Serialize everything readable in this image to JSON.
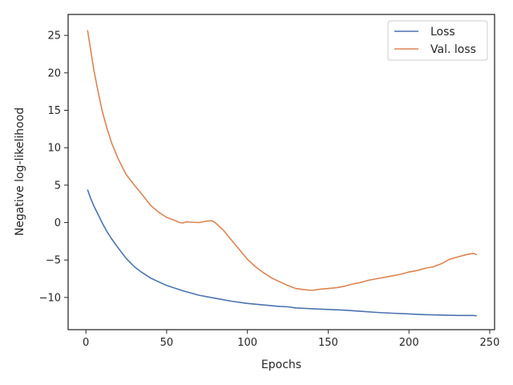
{
  "chart_data": {
    "type": "line",
    "xlabel": "Epochs",
    "ylabel": "Negative log-likelihood",
    "xlim": [
      -11,
      253
    ],
    "ylim": [
      -14.3,
      27.8
    ],
    "xticks": [
      0,
      50,
      100,
      150,
      200,
      250
    ],
    "yticks": [
      -10,
      -5,
      0,
      5,
      10,
      15,
      20,
      25
    ],
    "grid": false,
    "legend_position": "top-right",
    "series": [
      {
        "name": "Loss",
        "color": "#4C72B0",
        "points": [
          [
            1,
            4.4
          ],
          [
            3,
            3.2
          ],
          [
            5,
            2.2
          ],
          [
            8,
            0.9
          ],
          [
            10,
            0.0
          ],
          [
            13,
            -1.2
          ],
          [
            16,
            -2.2
          ],
          [
            20,
            -3.4
          ],
          [
            25,
            -4.8
          ],
          [
            30,
            -5.9
          ],
          [
            35,
            -6.7
          ],
          [
            40,
            -7.4
          ],
          [
            45,
            -7.9
          ],
          [
            50,
            -8.4
          ],
          [
            60,
            -9.1
          ],
          [
            70,
            -9.7
          ],
          [
            80,
            -10.1
          ],
          [
            90,
            -10.5
          ],
          [
            100,
            -10.8
          ],
          [
            110,
            -11.0
          ],
          [
            120,
            -11.2
          ],
          [
            125,
            -11.25
          ],
          [
            130,
            -11.4
          ],
          [
            140,
            -11.5
          ],
          [
            150,
            -11.6
          ],
          [
            160,
            -11.7
          ],
          [
            170,
            -11.85
          ],
          [
            180,
            -12.0
          ],
          [
            190,
            -12.1
          ],
          [
            200,
            -12.2
          ],
          [
            210,
            -12.3
          ],
          [
            220,
            -12.35
          ],
          [
            230,
            -12.4
          ],
          [
            240,
            -12.4
          ],
          [
            242,
            -12.45
          ]
        ]
      },
      {
        "name": "Val. loss",
        "color": "#DD8452",
        "points": [
          [
            1,
            25.7
          ],
          [
            3,
            23.0
          ],
          [
            5,
            20.3
          ],
          [
            8,
            17.0
          ],
          [
            10,
            15.0
          ],
          [
            13,
            12.6
          ],
          [
            16,
            10.6
          ],
          [
            20,
            8.5
          ],
          [
            25,
            6.4
          ],
          [
            30,
            5.0
          ],
          [
            35,
            3.7
          ],
          [
            40,
            2.3
          ],
          [
            45,
            1.4
          ],
          [
            50,
            0.7
          ],
          [
            55,
            0.3
          ],
          [
            58,
            0.0
          ],
          [
            60,
            -0.05
          ],
          [
            62,
            0.1
          ],
          [
            65,
            0.05
          ],
          [
            70,
            0.0
          ],
          [
            75,
            0.2
          ],
          [
            78,
            0.25
          ],
          [
            80,
            0.0
          ],
          [
            85,
            -1.0
          ],
          [
            90,
            -2.3
          ],
          [
            95,
            -3.6
          ],
          [
            100,
            -4.9
          ],
          [
            105,
            -5.9
          ],
          [
            110,
            -6.7
          ],
          [
            115,
            -7.4
          ],
          [
            120,
            -7.9
          ],
          [
            125,
            -8.4
          ],
          [
            130,
            -8.8
          ],
          [
            135,
            -8.95
          ],
          [
            140,
            -9.05
          ],
          [
            145,
            -8.9
          ],
          [
            150,
            -8.8
          ],
          [
            155,
            -8.7
          ],
          [
            160,
            -8.5
          ],
          [
            165,
            -8.2
          ],
          [
            170,
            -8.0
          ],
          [
            175,
            -7.7
          ],
          [
            180,
            -7.5
          ],
          [
            185,
            -7.3
          ],
          [
            190,
            -7.1
          ],
          [
            195,
            -6.9
          ],
          [
            200,
            -6.6
          ],
          [
            205,
            -6.4
          ],
          [
            210,
            -6.1
          ],
          [
            215,
            -5.9
          ],
          [
            220,
            -5.5
          ],
          [
            225,
            -4.9
          ],
          [
            230,
            -4.6
          ],
          [
            235,
            -4.3
          ],
          [
            240,
            -4.1
          ],
          [
            242,
            -4.3
          ]
        ]
      }
    ]
  }
}
